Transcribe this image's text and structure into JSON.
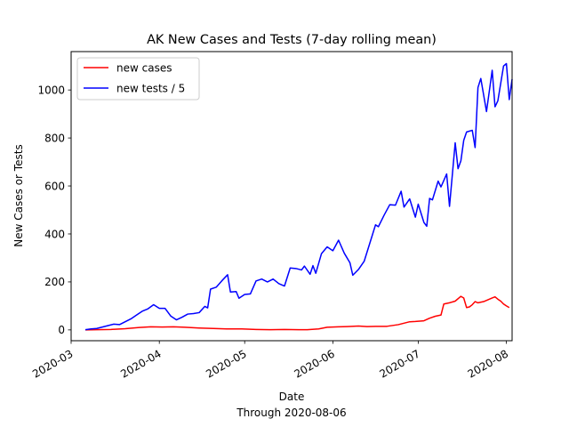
{
  "chart_data": {
    "type": "line",
    "title": "AK New Cases and Tests (7-day rolling mean)",
    "xlabel": "Date",
    "xlabel_note": "Through 2020-08-06",
    "ylabel": "New Cases or Tests",
    "xlim": [
      "2020-03-01",
      "2020-08-03"
    ],
    "ylim": [
      -45,
      1160
    ],
    "x_ticks": [
      "2020-03",
      "2020-04",
      "2020-05",
      "2020-06",
      "2020-07",
      "2020-08"
    ],
    "y_ticks": [
      0,
      200,
      400,
      600,
      800,
      1000
    ],
    "legend_position": "upper-left",
    "grid": false,
    "series": [
      {
        "name": "new cases",
        "color": "#ff0000",
        "points": [
          [
            "2020-03-06",
            0
          ],
          [
            "2020-03-10",
            1
          ],
          [
            "2020-03-15",
            2
          ],
          [
            "2020-03-20",
            5
          ],
          [
            "2020-03-25",
            10
          ],
          [
            "2020-03-29",
            13
          ],
          [
            "2020-04-02",
            12
          ],
          [
            "2020-04-06",
            13
          ],
          [
            "2020-04-10",
            11
          ],
          [
            "2020-04-15",
            8
          ],
          [
            "2020-04-20",
            6
          ],
          [
            "2020-04-25",
            4
          ],
          [
            "2020-04-30",
            4
          ],
          [
            "2020-05-05",
            2
          ],
          [
            "2020-05-10",
            1
          ],
          [
            "2020-05-15",
            2
          ],
          [
            "2020-05-20",
            1
          ],
          [
            "2020-05-23",
            1
          ],
          [
            "2020-05-27",
            4
          ],
          [
            "2020-05-30",
            11
          ],
          [
            "2020-06-03",
            13
          ],
          [
            "2020-06-06",
            14
          ],
          [
            "2020-06-10",
            16
          ],
          [
            "2020-06-13",
            14
          ],
          [
            "2020-06-16",
            15
          ],
          [
            "2020-06-20",
            15
          ],
          [
            "2020-06-24",
            22
          ],
          [
            "2020-06-28",
            34
          ],
          [
            "2020-06-30",
            35
          ],
          [
            "2020-07-03",
            38
          ],
          [
            "2020-07-05",
            49
          ],
          [
            "2020-07-07",
            57
          ],
          [
            "2020-07-09",
            62
          ],
          [
            "2020-07-10",
            108
          ],
          [
            "2020-07-12",
            113
          ],
          [
            "2020-07-14",
            120
          ],
          [
            "2020-07-16",
            140
          ],
          [
            "2020-07-17",
            133
          ],
          [
            "2020-07-18",
            93
          ],
          [
            "2020-07-19",
            96
          ],
          [
            "2020-07-20",
            105
          ],
          [
            "2020-07-21",
            118
          ],
          [
            "2020-07-22",
            113
          ],
          [
            "2020-07-24",
            118
          ],
          [
            "2020-07-27",
            133
          ],
          [
            "2020-07-28",
            138
          ],
          [
            "2020-07-29",
            128
          ],
          [
            "2020-07-30",
            120
          ],
          [
            "2020-07-31",
            108
          ],
          [
            "2020-08-01",
            100
          ],
          [
            "2020-08-02",
            93
          ]
        ]
      },
      {
        "name": "new tests / 5",
        "color": "#0000ff",
        "points": [
          [
            "2020-03-06",
            1
          ],
          [
            "2020-03-08",
            4
          ],
          [
            "2020-03-10",
            6
          ],
          [
            "2020-03-12",
            12
          ],
          [
            "2020-03-14",
            18
          ],
          [
            "2020-03-16",
            24
          ],
          [
            "2020-03-18",
            22
          ],
          [
            "2020-03-20",
            34
          ],
          [
            "2020-03-22",
            46
          ],
          [
            "2020-03-24",
            62
          ],
          [
            "2020-03-26",
            78
          ],
          [
            "2020-03-28",
            88
          ],
          [
            "2020-03-30",
            105
          ],
          [
            "2020-04-01",
            90
          ],
          [
            "2020-04-03",
            90
          ],
          [
            "2020-04-05",
            58
          ],
          [
            "2020-04-07",
            42
          ],
          [
            "2020-04-09",
            53
          ],
          [
            "2020-04-11",
            66
          ],
          [
            "2020-04-13",
            68
          ],
          [
            "2020-04-15",
            72
          ],
          [
            "2020-04-17",
            98
          ],
          [
            "2020-04-18",
            92
          ],
          [
            "2020-04-19",
            170
          ],
          [
            "2020-04-21",
            178
          ],
          [
            "2020-04-23",
            205
          ],
          [
            "2020-04-25",
            230
          ],
          [
            "2020-04-26",
            158
          ],
          [
            "2020-04-28",
            160
          ],
          [
            "2020-04-29",
            132
          ],
          [
            "2020-05-01",
            148
          ],
          [
            "2020-05-03",
            150
          ],
          [
            "2020-05-05",
            204
          ],
          [
            "2020-05-07",
            212
          ],
          [
            "2020-05-09",
            200
          ],
          [
            "2020-05-11",
            212
          ],
          [
            "2020-05-13",
            193
          ],
          [
            "2020-05-15",
            183
          ],
          [
            "2020-05-17",
            258
          ],
          [
            "2020-05-19",
            256
          ],
          [
            "2020-05-21",
            250
          ],
          [
            "2020-05-22",
            266
          ],
          [
            "2020-05-24",
            232
          ],
          [
            "2020-05-25",
            268
          ],
          [
            "2020-05-26",
            236
          ],
          [
            "2020-05-28",
            318
          ],
          [
            "2020-05-30",
            346
          ],
          [
            "2020-06-01",
            330
          ],
          [
            "2020-06-03",
            374
          ],
          [
            "2020-06-05",
            320
          ],
          [
            "2020-06-07",
            280
          ],
          [
            "2020-06-08",
            228
          ],
          [
            "2020-06-10",
            252
          ],
          [
            "2020-06-12",
            286
          ],
          [
            "2020-06-14",
            362
          ],
          [
            "2020-06-16",
            438
          ],
          [
            "2020-06-17",
            430
          ],
          [
            "2020-06-19",
            478
          ],
          [
            "2020-06-21",
            522
          ],
          [
            "2020-06-23",
            520
          ],
          [
            "2020-06-25",
            578
          ],
          [
            "2020-06-26",
            512
          ],
          [
            "2020-06-28",
            546
          ],
          [
            "2020-06-30",
            470
          ],
          [
            "2020-07-01",
            524
          ],
          [
            "2020-07-03",
            448
          ],
          [
            "2020-07-04",
            432
          ],
          [
            "2020-07-05",
            548
          ],
          [
            "2020-07-06",
            542
          ],
          [
            "2020-07-08",
            620
          ],
          [
            "2020-07-09",
            596
          ],
          [
            "2020-07-11",
            650
          ],
          [
            "2020-07-12",
            515
          ],
          [
            "2020-07-14",
            780
          ],
          [
            "2020-07-15",
            672
          ],
          [
            "2020-07-16",
            705
          ],
          [
            "2020-07-17",
            790
          ],
          [
            "2020-07-18",
            825
          ],
          [
            "2020-07-20",
            832
          ],
          [
            "2020-07-21",
            760
          ],
          [
            "2020-07-22",
            1010
          ],
          [
            "2020-07-23",
            1048
          ],
          [
            "2020-07-25",
            910
          ],
          [
            "2020-07-27",
            1082
          ],
          [
            "2020-07-28",
            930
          ],
          [
            "2020-07-29",
            955
          ],
          [
            "2020-07-31",
            1100
          ],
          [
            "2020-08-01",
            1110
          ],
          [
            "2020-08-02",
            960
          ],
          [
            "2020-08-03",
            1045
          ]
        ]
      }
    ]
  }
}
